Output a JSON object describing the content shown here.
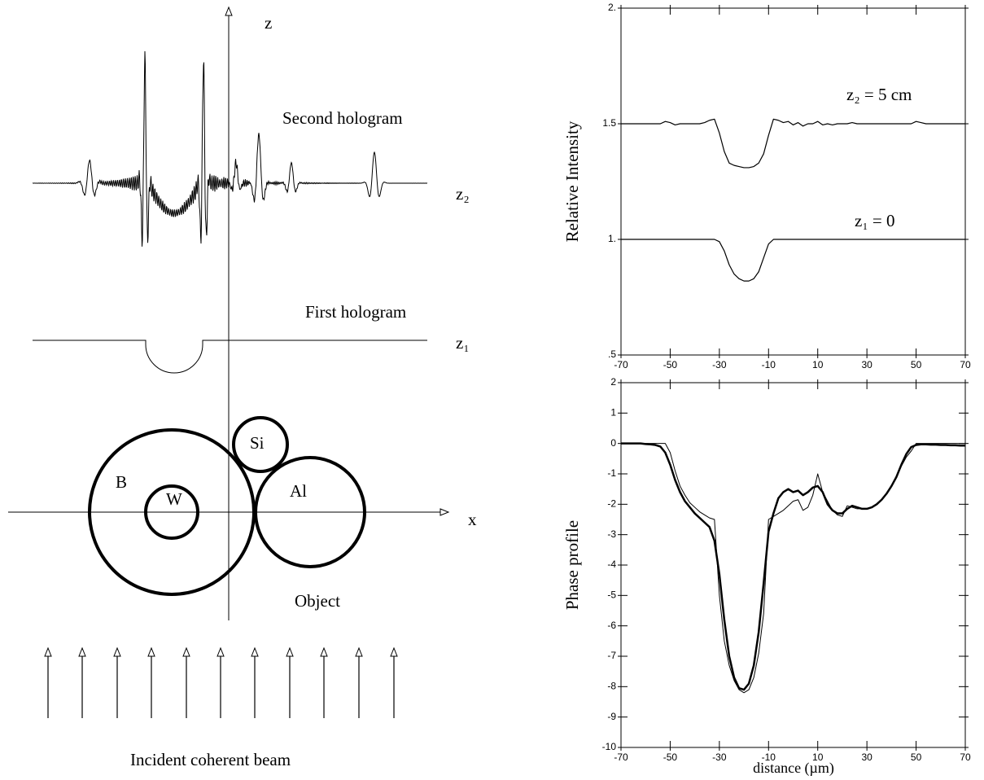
{
  "diagram": {
    "z_axis": "z",
    "x_axis": "x",
    "second_hologram": "Second hologram",
    "z2": "z₂",
    "first_hologram": "First hologram",
    "z1": "z₁",
    "si": "Si",
    "b": "B",
    "w": "W",
    "al": "Al",
    "object": "Object",
    "beam": "Incident coherent beam"
  },
  "chart_data": [
    {
      "type": "line",
      "ylabel": "Relative Intensity",
      "x": [
        -70,
        -68,
        -66,
        -64,
        -62,
        -60,
        -58,
        -56,
        -54,
        -52,
        -50,
        -48,
        -46,
        -44,
        -42,
        -40,
        -38,
        -36,
        -34,
        -32,
        -30,
        -28,
        -26,
        -24,
        -22,
        -20,
        -18,
        -16,
        -14,
        -12,
        -10,
        -8,
        -6,
        -4,
        -2,
        0,
        2,
        4,
        6,
        8,
        10,
        12,
        14,
        16,
        18,
        20,
        22,
        24,
        26,
        28,
        30,
        32,
        34,
        36,
        38,
        40,
        42,
        44,
        46,
        48,
        50,
        52,
        54,
        56,
        58,
        60,
        62,
        64,
        66,
        68,
        70
      ],
      "series": [
        {
          "name": "z₂ = 5 cm",
          "color": "#000000",
          "values": [
            1.5,
            1.5,
            1.5,
            1.5,
            1.5,
            1.5,
            1.5,
            1.5,
            1.5,
            1.51,
            1.505,
            1.495,
            1.5,
            1.5,
            1.5,
            1.5,
            1.5,
            1.505,
            1.515,
            1.52,
            1.46,
            1.38,
            1.33,
            1.32,
            1.315,
            1.31,
            1.31,
            1.315,
            1.33,
            1.37,
            1.45,
            1.52,
            1.515,
            1.505,
            1.51,
            1.495,
            1.505,
            1.49,
            1.5,
            1.5,
            1.51,
            1.495,
            1.5,
            1.495,
            1.5,
            1.5,
            1.5,
            1.505,
            1.5,
            1.5,
            1.5,
            1.5,
            1.5,
            1.5,
            1.5,
            1.5,
            1.5,
            1.5,
            1.5,
            1.5,
            1.51,
            1.505,
            1.5,
            1.5,
            1.5,
            1.5,
            1.5,
            1.5,
            1.5,
            1.5,
            1.5
          ]
        },
        {
          "name": "z₁ = 0",
          "color": "#000000",
          "values": [
            1,
            1,
            1,
            1,
            1,
            1,
            1,
            1,
            1,
            1,
            1,
            1,
            1,
            1,
            1,
            1,
            1,
            1,
            1,
            1,
            0.99,
            0.95,
            0.89,
            0.85,
            0.83,
            0.82,
            0.82,
            0.83,
            0.86,
            0.92,
            0.98,
            1,
            1,
            1,
            1,
            1,
            1,
            1,
            1,
            1,
            1,
            1,
            1,
            1,
            1,
            1,
            1,
            1,
            1,
            1,
            1,
            1,
            1,
            1,
            1,
            1,
            1,
            1,
            1,
            1,
            1,
            1,
            1,
            1,
            1,
            1,
            1,
            1,
            1,
            1,
            1
          ]
        }
      ],
      "xlim": [
        -70,
        70
      ],
      "xticks": [
        -70,
        -50,
        -30,
        -10,
        10,
        30,
        50,
        70
      ],
      "ylim": [
        0.5,
        2
      ],
      "yticks": [
        {
          "value": 0.5,
          "label": ".5"
        },
        {
          "value": 1,
          "label": "1."
        },
        1.5,
        {
          "value": 2,
          "label": "2."
        }
      ]
    },
    {
      "type": "line",
      "ylabel": "Phase profile",
      "xlabel": "distance (µm)",
      "x": [
        -70,
        -68,
        -66,
        -64,
        -62,
        -60,
        -58,
        -56,
        -54,
        -52,
        -50,
        -48,
        -46,
        -44,
        -42,
        -40,
        -38,
        -36,
        -34,
        -32,
        -30,
        -28,
        -26,
        -24,
        -22,
        -20,
        -18,
        -16,
        -14,
        -12,
        -10,
        -8,
        -6,
        -4,
        -2,
        0,
        2,
        4,
        6,
        8,
        10,
        12,
        14,
        16,
        18,
        20,
        22,
        24,
        26,
        28,
        30,
        32,
        34,
        36,
        38,
        40,
        42,
        44,
        46,
        48,
        50,
        52,
        54,
        56,
        58,
        60,
        62,
        64,
        66,
        68,
        70
      ],
      "series": [
        {
          "color": "#000000",
          "line_width": 1,
          "values": [
            0,
            0,
            0,
            0,
            0,
            0,
            0,
            0,
            0,
            0,
            -0.3,
            -0.9,
            -1.4,
            -1.7,
            -1.95,
            -2.1,
            -2.25,
            -2.35,
            -2.45,
            -2.5,
            -5.0,
            -6.5,
            -7.3,
            -7.8,
            -8.1,
            -8.2,
            -8.1,
            -7.7,
            -6.9,
            -5.6,
            -2.5,
            -2.4,
            -2.3,
            -2.2,
            -2.05,
            -1.9,
            -1.85,
            -2.2,
            -2.1,
            -1.7,
            -1.0,
            -1.6,
            -1.9,
            -2.2,
            -2.35,
            -2.4,
            -2.05,
            -2.1,
            -2.15,
            -2.15,
            -2.15,
            -2.1,
            -2.0,
            -1.85,
            -1.65,
            -1.4,
            -1.1,
            -0.75,
            -0.45,
            -0.25,
            0,
            0,
            0,
            0,
            0,
            0,
            0,
            0,
            0,
            0,
            0
          ]
        },
        {
          "color": "#000000",
          "line_width": 2.5,
          "values": [
            0,
            0,
            0,
            0,
            0,
            -0.02,
            -0.03,
            -0.05,
            -0.1,
            -0.3,
            -0.7,
            -1.2,
            -1.6,
            -1.9,
            -2.1,
            -2.3,
            -2.45,
            -2.6,
            -2.75,
            -3.2,
            -4.3,
            -5.8,
            -7.0,
            -7.7,
            -8.05,
            -8.1,
            -7.9,
            -7.3,
            -6.2,
            -4.6,
            -2.9,
            -2.3,
            -1.8,
            -1.6,
            -1.5,
            -1.6,
            -1.55,
            -1.7,
            -1.6,
            -1.45,
            -1.4,
            -1.6,
            -2.0,
            -2.2,
            -2.3,
            -2.3,
            -2.15,
            -2.05,
            -2.1,
            -2.15,
            -2.15,
            -2.1,
            -2.0,
            -1.85,
            -1.65,
            -1.4,
            -1.1,
            -0.7,
            -0.35,
            -0.12,
            -0.05,
            -0.03,
            -0.03,
            -0.04,
            -0.04,
            -0.05,
            -0.05,
            -0.06,
            -0.06,
            -0.07,
            -0.07
          ]
        }
      ],
      "xlim": [
        -70,
        70
      ],
      "xticks": [
        -70,
        -50,
        -30,
        -10,
        10,
        30,
        50,
        70
      ],
      "ylim": [
        -10,
        2
      ],
      "yticks": [
        -10,
        -9,
        -8,
        -7,
        -6,
        -5,
        -4,
        -3,
        -2,
        -1,
        0,
        1,
        2
      ]
    }
  ]
}
